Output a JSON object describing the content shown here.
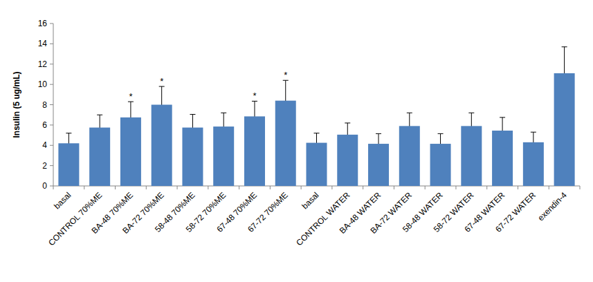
{
  "chart_data": {
    "type": "bar",
    "y_label": "Insulin (5 ug/mL)",
    "categories": [
      "basal",
      "CONTROL 70%ME",
      "BA-48 70%ME",
      "BA-72 70%ME",
      "58-48  70%ME",
      "58-72  70%ME",
      "67-48  70%ME",
      "67-72 70%ME",
      "basal",
      "CONTROL WATER",
      "BA-48 WATER",
      "BA-72 WATER",
      "58-48 WATER",
      "58-72 WATER",
      "67-48 WATER",
      "67-72 WATER",
      "exendin-4"
    ],
    "values": [
      4.2,
      5.75,
      6.75,
      8.0,
      5.75,
      5.85,
      6.85,
      8.4,
      4.25,
      5.05,
      4.15,
      5.9,
      4.15,
      5.9,
      5.45,
      4.3,
      11.1
    ],
    "errors": [
      1.0,
      1.25,
      1.55,
      1.8,
      1.3,
      1.35,
      1.5,
      2.0,
      0.95,
      1.15,
      1.0,
      1.3,
      1.0,
      1.3,
      1.3,
      1.0,
      2.6
    ],
    "annotations": [
      null,
      null,
      "*",
      "*",
      null,
      null,
      "*",
      "*",
      null,
      null,
      null,
      null,
      null,
      null,
      null,
      null,
      null
    ],
    "color": "#4f81bd",
    "ylim": [
      0,
      16
    ],
    "yticks": [
      0,
      2,
      4,
      6,
      8,
      10,
      12,
      14,
      16
    ],
    "grid": false
  }
}
